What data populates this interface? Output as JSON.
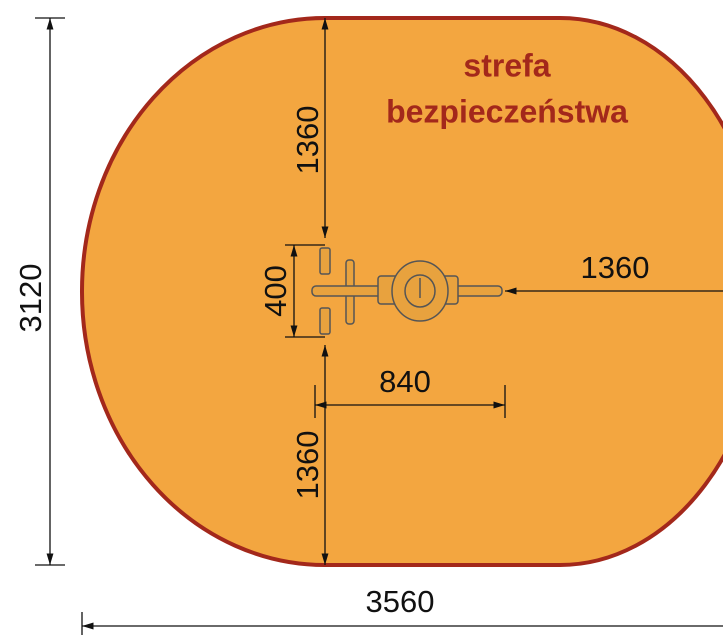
{
  "title": {
    "line1": "strefa",
    "line2": "bezpieczeństwa"
  },
  "dimensions": {
    "total_height": "3120",
    "total_width": "3560",
    "top": "1360",
    "bottom": "1360",
    "right": "1360",
    "device_width": "400",
    "device_length": "840"
  }
}
